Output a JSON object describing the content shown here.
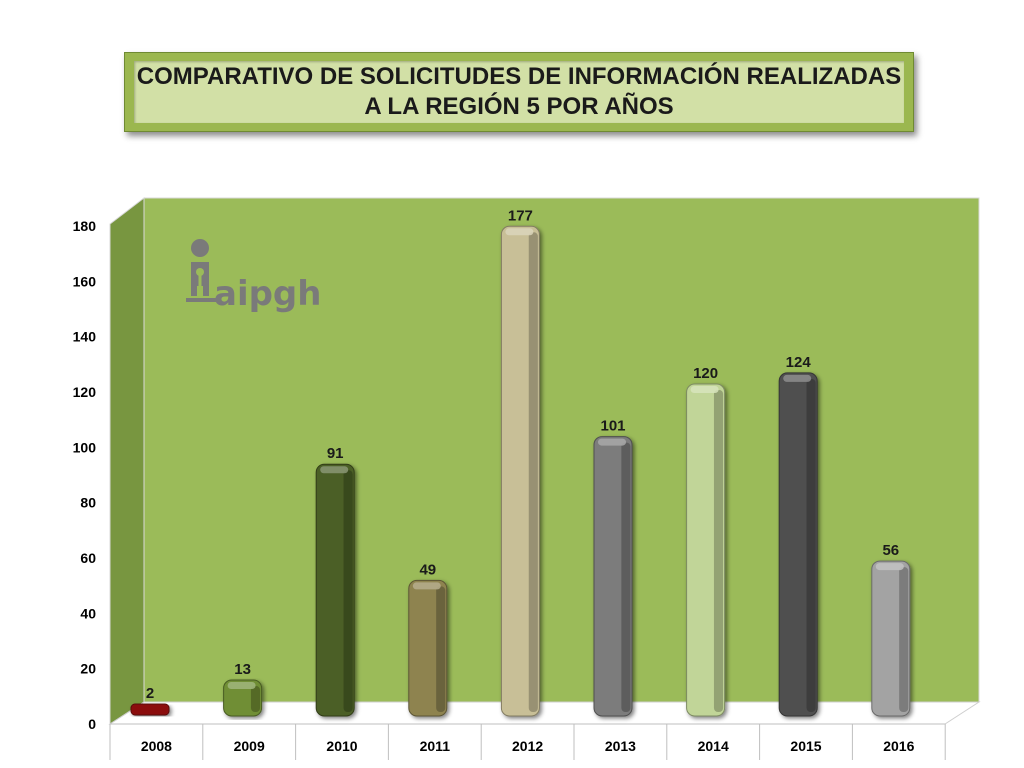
{
  "title": {
    "line1": "COMPARATIVO DE SOLICITUDES  DE INFORMACIÓN REALIZADAS",
    "line2": "A LA REGIÓN 5 POR AÑOS"
  },
  "logo": {
    "text": "aipgh",
    "icon": "person-key-icon"
  },
  "chart_data": {
    "type": "bar",
    "title": "COMPARATIVO DE SOLICITUDES  DE INFORMACIÓN REALIZADAS A LA REGIÓN 5 POR AÑOS",
    "xlabel": "",
    "ylabel": "",
    "ylim": [
      0,
      180
    ],
    "yticks": [
      0,
      20,
      40,
      60,
      80,
      100,
      120,
      140,
      160,
      180
    ],
    "categories": [
      "2008",
      "2009",
      "2010",
      "2011",
      "2012",
      "2013",
      "2014",
      "2015",
      "2016"
    ],
    "values": [
      2,
      13,
      91,
      49,
      177,
      101,
      120,
      124,
      56
    ],
    "colors": [
      "#8b0a0a",
      "#6f8e35",
      "#4b5e27",
      "#8e8350",
      "#c8bf97",
      "#7b7b7b",
      "#c1d598",
      "#505050",
      "#a3a3a3"
    ],
    "data_labels": true,
    "grid": false,
    "legend": "none",
    "background": "#9bbb59"
  }
}
